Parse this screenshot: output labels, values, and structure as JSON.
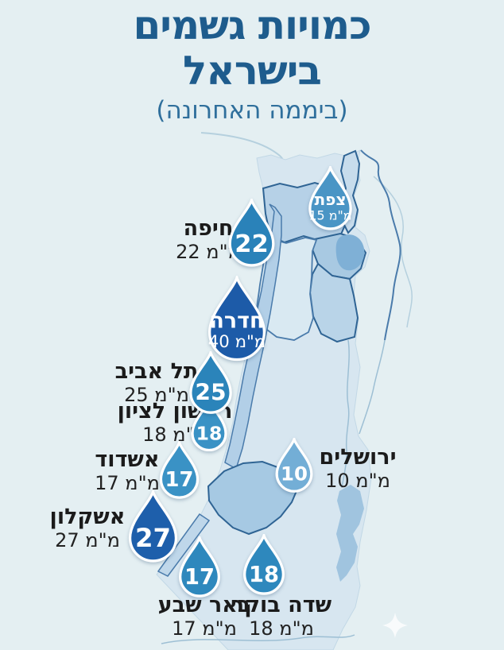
{
  "title": {
    "line1": "כמויות גשמים",
    "line2": "בישראל",
    "subtitle": "(ביממה האחרונה)"
  },
  "unit": "מ\"מ",
  "colors": {
    "background": "#e4eff2",
    "title_text": "#1e5c8d",
    "label_text": "#1b1b1b",
    "droplet_dark": "#1d5ba8",
    "droplet_medium": "#2a82b9",
    "droplet_light": "#73aed6",
    "land_base": "#d7e6f0",
    "region_medium": "#b6d1e7",
    "lake": "#7fb0d6",
    "border_line": "#2f6494"
  },
  "cities": [
    {
      "id": "safed",
      "name": "צפת",
      "value": 15,
      "amount": "15 מ\"מ",
      "droplet_text": "name_amount",
      "color": "#4a95c5"
    },
    {
      "id": "haifa",
      "name": "חיפה",
      "value": 22,
      "amount": "22 מ\"מ",
      "droplet_text": "value",
      "color": "#2a82b9"
    },
    {
      "id": "hadera",
      "name": "חדרה",
      "value": 40,
      "amount": "40 מ\"מ",
      "droplet_text": "name_amount",
      "color": "#1d5ba8"
    },
    {
      "id": "telaviv",
      "name": "תל אביב",
      "value": 25,
      "amount": "25 מ\"מ",
      "droplet_text": "value",
      "color": "#2b84ba"
    },
    {
      "id": "rishon",
      "name": "ראשון לציון",
      "value": 18,
      "amount": "18 מ\"מ",
      "droplet_text": "value",
      "color": "#3a92c5"
    },
    {
      "id": "ashdod",
      "name": "אשדוד",
      "value": 17,
      "amount": "17 מ\"מ",
      "droplet_text": "value",
      "color": "#3a92c5"
    },
    {
      "id": "jerusalem",
      "name": "ירושלים",
      "value": 10,
      "amount": "10 מ\"מ",
      "droplet_text": "value",
      "color": "#73aed6"
    },
    {
      "id": "ashkelon",
      "name": "אשקלון",
      "value": 27,
      "amount": "27 מ\"מ",
      "droplet_text": "value",
      "color": "#1e5fab"
    },
    {
      "id": "beersheva",
      "name": "באר שבע",
      "value": 17,
      "amount": "17 מ\"מ",
      "droplet_text": "value",
      "color": "#2e88bd"
    },
    {
      "id": "sdeboker",
      "name": "שדה בוקר",
      "value": 18,
      "amount": "18 מ\"מ",
      "droplet_text": "value",
      "color": "#2e88bd"
    }
  ],
  "chart_data": {
    "type": "table",
    "title": "כמויות גשמים בישראל",
    "subtitle": "(ביממה האחרונה)",
    "unit": "מ\"מ",
    "categories": [
      "צפת",
      "חיפה",
      "חדרה",
      "תל אביב",
      "ראשון לציון",
      "אשדוד",
      "ירושלים",
      "אשקלון",
      "באר שבע",
      "שדה בוקר"
    ],
    "values": [
      15,
      22,
      40,
      25,
      18,
      17,
      10,
      27,
      17,
      18
    ]
  },
  "watermark_icon": "sparkle"
}
